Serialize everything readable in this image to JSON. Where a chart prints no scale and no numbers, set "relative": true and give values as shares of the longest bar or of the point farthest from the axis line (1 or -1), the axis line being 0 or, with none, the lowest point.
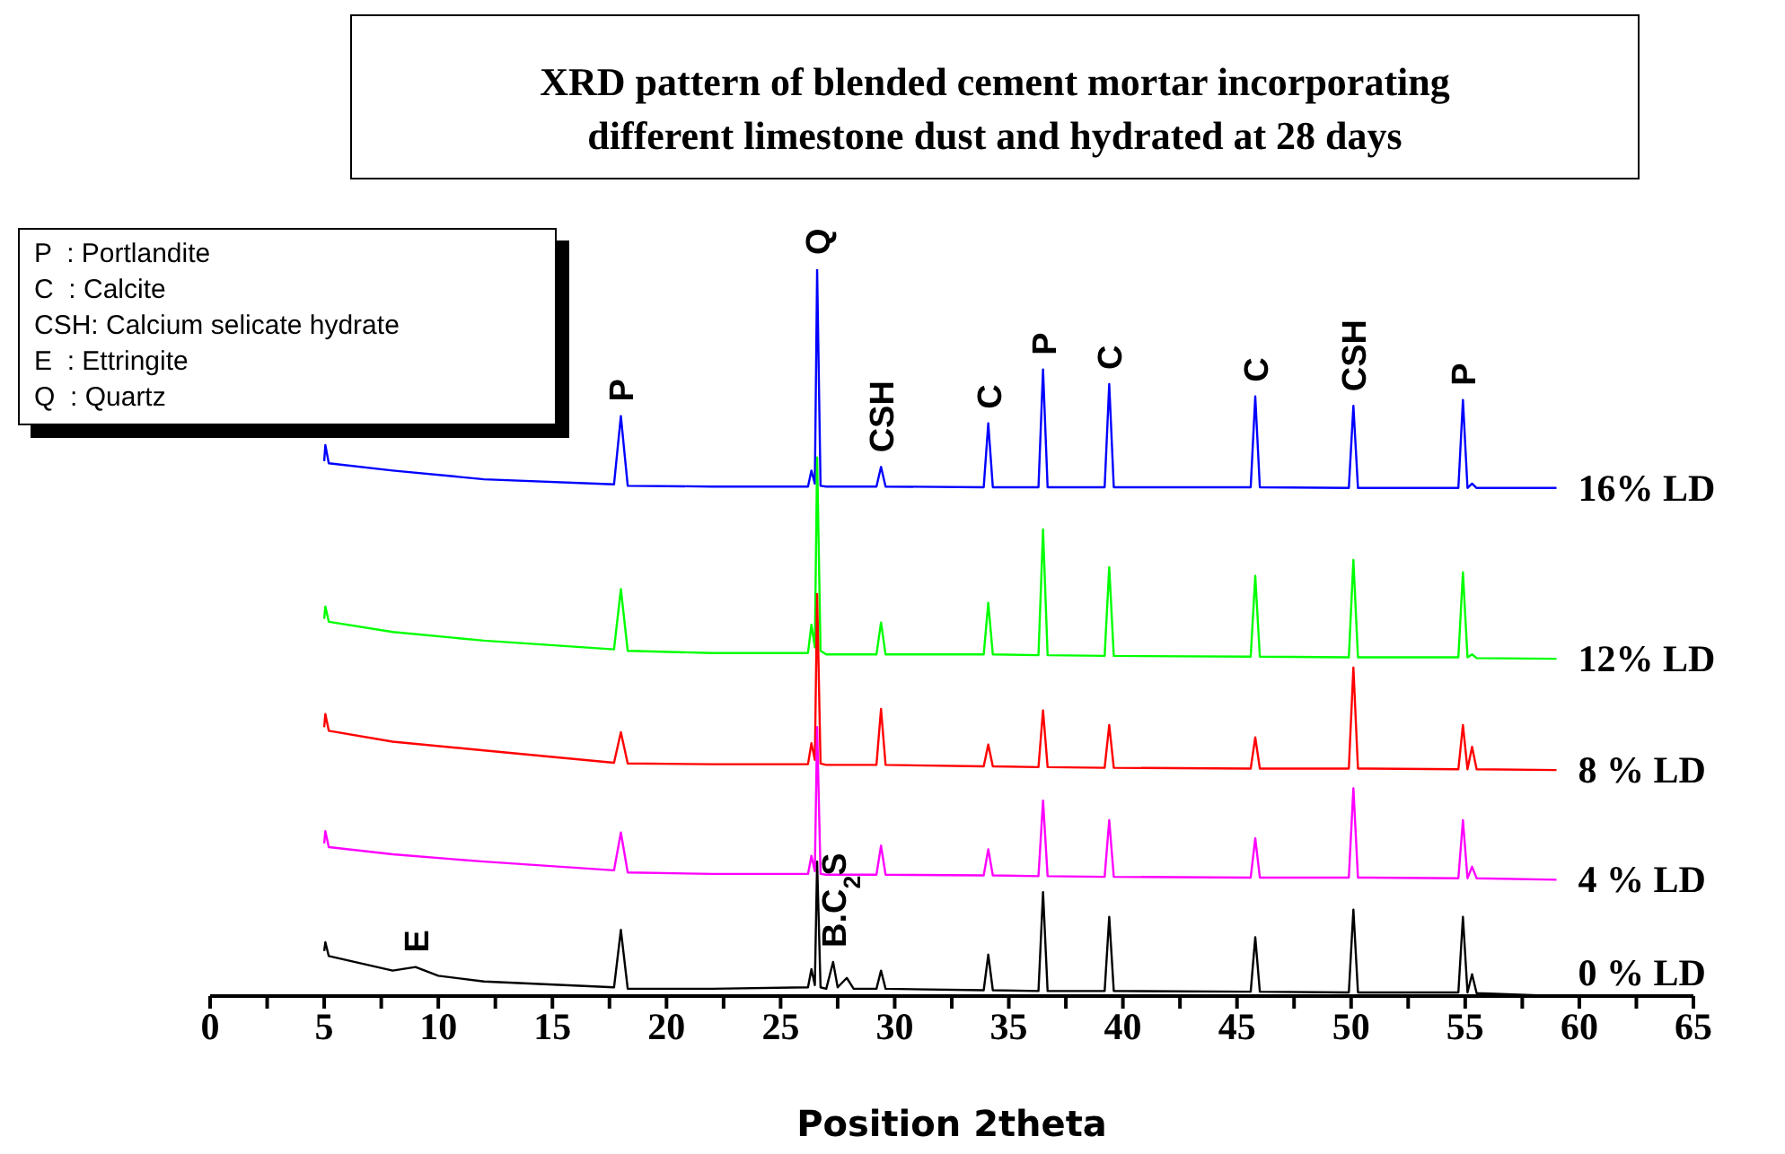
{
  "chart_data": {
    "type": "line",
    "title": "XRD pattern of blended cement mortar incorporating\ndifferent limestone dust and hydrated at 28 days",
    "xlabel": "Position 2theta",
    "relative": true,
    "marker": "none",
    "line_style": "solid",
    "tick_labels": "x",
    "xlim": [
      0,
      65
    ],
    "xticks": [
      0,
      {
        "value": 2.5,
        "label": null
      },
      5,
      {
        "value": 7.5,
        "label": null
      },
      10,
      {
        "value": 12.5,
        "label": null
      },
      15,
      {
        "value": 17.5,
        "label": null
      },
      20,
      {
        "value": 22.5,
        "label": null
      },
      25,
      {
        "value": 27.5,
        "label": null
      },
      30,
      {
        "value": 32.5,
        "label": null
      },
      35,
      {
        "value": 37.5,
        "label": null
      },
      40,
      {
        "value": 42.5,
        "label": null
      },
      45,
      {
        "value": 47.5,
        "label": null
      },
      50,
      {
        "value": 52.5,
        "label": null
      },
      55,
      {
        "value": 57.5,
        "label": null
      },
      60,
      {
        "value": 62.5,
        "label": null
      },
      65
    ],
    "series": [
      {
        "name": "16% LD",
        "color": "#0000ff",
        "x": [
          5,
          5.05,
          5.2,
          8,
          12,
          17.7,
          18,
          18.3,
          22,
          26.2,
          26.35,
          26.5,
          26.6,
          26.75,
          27,
          29.2,
          29.4,
          29.6,
          33.9,
          34.1,
          34.3,
          36.3,
          36.5,
          36.7,
          39.2,
          39.4,
          39.6,
          45.6,
          45.8,
          46,
          49.9,
          50.1,
          50.3,
          54.7,
          54.9,
          55.1,
          55.3,
          55.5,
          59
        ],
        "values": [
          0.736,
          0.758,
          0.733,
          0.723,
          0.711,
          0.704,
          0.798,
          0.702,
          0.701,
          0.701,
          0.723,
          0.705,
          1.0,
          0.702,
          0.701,
          0.701,
          0.728,
          0.701,
          0.7,
          0.788,
          0.7,
          0.7,
          0.862,
          0.7,
          0.7,
          0.842,
          0.7,
          0.7,
          0.825,
          0.7,
          0.699,
          0.812,
          0.699,
          0.699,
          0.82,
          0.699,
          0.705,
          0.699,
          0.699
        ]
      },
      {
        "name": "12% LD",
        "color": "#00ff00",
        "x": [
          5,
          5.05,
          5.2,
          8,
          12,
          17.7,
          18,
          18.3,
          22,
          26.2,
          26.35,
          26.5,
          26.6,
          26.75,
          27,
          29.2,
          29.4,
          29.6,
          33.9,
          34.1,
          34.3,
          36.3,
          36.5,
          36.7,
          39.2,
          39.4,
          39.6,
          45.6,
          45.8,
          46,
          49.9,
          50.1,
          50.3,
          54.7,
          54.9,
          55.1,
          55.3,
          55.5,
          59
        ],
        "values": [
          0.519,
          0.536,
          0.515,
          0.501,
          0.489,
          0.477,
          0.56,
          0.475,
          0.472,
          0.472,
          0.511,
          0.48,
          0.741,
          0.475,
          0.47,
          0.47,
          0.514,
          0.47,
          0.47,
          0.541,
          0.47,
          0.469,
          0.642,
          0.469,
          0.468,
          0.59,
          0.468,
          0.467,
          0.578,
          0.467,
          0.466,
          0.6,
          0.466,
          0.466,
          0.583,
          0.466,
          0.47,
          0.465,
          0.464
        ]
      },
      {
        "name": "8 % LD",
        "color": "#ff0000",
        "x": [
          5,
          5.05,
          5.2,
          8,
          12,
          17.7,
          18,
          18.3,
          22,
          26.2,
          26.35,
          26.5,
          26.6,
          26.75,
          27,
          29.2,
          29.4,
          29.6,
          33.9,
          34.1,
          34.3,
          36.3,
          36.5,
          36.7,
          39.2,
          39.4,
          39.6,
          45.6,
          45.8,
          46,
          49.9,
          50.1,
          50.3,
          54.7,
          54.9,
          55.1,
          55.3,
          55.5,
          59
        ],
        "values": [
          0.37,
          0.388,
          0.365,
          0.35,
          0.338,
          0.321,
          0.363,
          0.32,
          0.319,
          0.319,
          0.348,
          0.325,
          0.553,
          0.32,
          0.318,
          0.318,
          0.395,
          0.318,
          0.316,
          0.346,
          0.316,
          0.315,
          0.393,
          0.315,
          0.314,
          0.373,
          0.314,
          0.313,
          0.356,
          0.313,
          0.313,
          0.452,
          0.313,
          0.312,
          0.373,
          0.312,
          0.343,
          0.312,
          0.311
        ]
      },
      {
        "name": "4 % LD",
        "color": "#ff00ff",
        "x": [
          5,
          5.05,
          5.2,
          8,
          12,
          17.7,
          18,
          18.3,
          22,
          26.2,
          26.35,
          26.5,
          26.6,
          26.75,
          27,
          29.2,
          29.4,
          29.6,
          33.9,
          34.1,
          34.3,
          36.3,
          36.5,
          36.7,
          39.2,
          39.4,
          39.6,
          45.6,
          45.8,
          46,
          49.9,
          50.1,
          50.3,
          54.7,
          54.9,
          55.1,
          55.3,
          55.5,
          59
        ],
        "values": [
          0.21,
          0.227,
          0.205,
          0.195,
          0.185,
          0.173,
          0.225,
          0.17,
          0.168,
          0.168,
          0.193,
          0.172,
          0.37,
          0.168,
          0.167,
          0.167,
          0.207,
          0.167,
          0.166,
          0.202,
          0.166,
          0.165,
          0.269,
          0.165,
          0.164,
          0.242,
          0.164,
          0.163,
          0.217,
          0.163,
          0.163,
          0.286,
          0.163,
          0.162,
          0.242,
          0.162,
          0.178,
          0.162,
          0.16
        ]
      },
      {
        "name": "0 % LD",
        "color": "#000000",
        "x": [
          5,
          5.05,
          5.2,
          8,
          9,
          10,
          12,
          17.7,
          18,
          18.3,
          22,
          26.2,
          26.35,
          26.5,
          26.6,
          26.75,
          27,
          27.3,
          27.5,
          27.9,
          28.2,
          29.2,
          29.4,
          29.6,
          33.9,
          34.1,
          34.3,
          36.3,
          36.5,
          36.7,
          39.2,
          39.4,
          39.6,
          45.6,
          45.8,
          46,
          49.9,
          50.1,
          50.3,
          54.7,
          54.9,
          55.1,
          55.3,
          55.5,
          59
        ],
        "values": [
          0.062,
          0.074,
          0.055,
          0.035,
          0.04,
          0.028,
          0.02,
          0.012,
          0.091,
          0.01,
          0.01,
          0.012,
          0.037,
          0.015,
          0.185,
          0.012,
          0.01,
          0.047,
          0.012,
          0.025,
          0.01,
          0.01,
          0.035,
          0.01,
          0.008,
          0.057,
          0.008,
          0.007,
          0.143,
          0.007,
          0.007,
          0.109,
          0.007,
          0.006,
          0.081,
          0.006,
          0.005,
          0.119,
          0.005,
          0.005,
          0.109,
          0.005,
          0.03,
          0.004,
          0.0
        ]
      }
    ],
    "annotations": [
      "P  : Portlandite",
      "C  : Calcite",
      "CSH: Calcium selicate hydrate",
      "E  : Ettringite",
      "Q  : Quartz",
      {
        "text": "P",
        "x": 18,
        "y": 0.798
      },
      {
        "text": "Q",
        "x": 26.6,
        "y": 1.0
      },
      {
        "text": "CSH",
        "x": 29.4,
        "y": 0.728
      },
      {
        "text": "C",
        "x": 34.1,
        "y": 0.788
      },
      {
        "text": "P",
        "x": 36.5,
        "y": 0.862
      },
      {
        "text": "C",
        "x": 39.4,
        "y": 0.842
      },
      {
        "text": "C",
        "x": 45.8,
        "y": 0.825
      },
      {
        "text": "CSH",
        "x": 50.1,
        "y": 0.812
      },
      {
        "text": "P",
        "x": 54.9,
        "y": 0.82
      },
      {
        "text": "E",
        "x": 9,
        "y": 0.04
      },
      {
        "text": "B.C$_{2}$S",
        "x": 27.3,
        "y": 0.047
      }
    ]
  }
}
